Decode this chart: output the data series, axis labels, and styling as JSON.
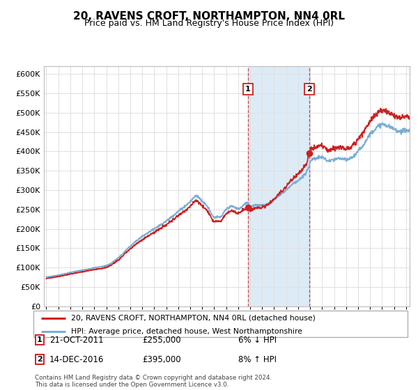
{
  "title": "20, RAVENS CROFT, NORTHAMPTON, NN4 0RL",
  "subtitle": "Price paid vs. HM Land Registry's House Price Index (HPI)",
  "ylim": [
    0,
    620000
  ],
  "yticks": [
    0,
    50000,
    100000,
    150000,
    200000,
    250000,
    300000,
    350000,
    400000,
    450000,
    500000,
    550000,
    600000
  ],
  "xlim_start": 1994.8,
  "xlim_end": 2025.3,
  "sale1_date_num": 2011.81,
  "sale1_price": 255000,
  "sale1_label": "1",
  "sale2_date_num": 2016.96,
  "sale2_price": 395000,
  "sale2_label": "2",
  "shaded_x1": 2011.81,
  "shaded_x2": 2016.96,
  "prop_color": "#cc2222",
  "hpi_color": "#7aaed6",
  "legend_line1_label": "20, RAVENS CROFT, NORTHAMPTON, NN4 0RL (detached house)",
  "legend_line2_label": "HPI: Average price, detached house, West Northamptonshire",
  "footer": "Contains HM Land Registry data © Crown copyright and database right 2024.\nThis data is licensed under the Open Government Licence v3.0.",
  "background_color": "#ffffff",
  "grid_color": "#e0e0e0",
  "title_fontsize": 11,
  "subtitle_fontsize": 9
}
